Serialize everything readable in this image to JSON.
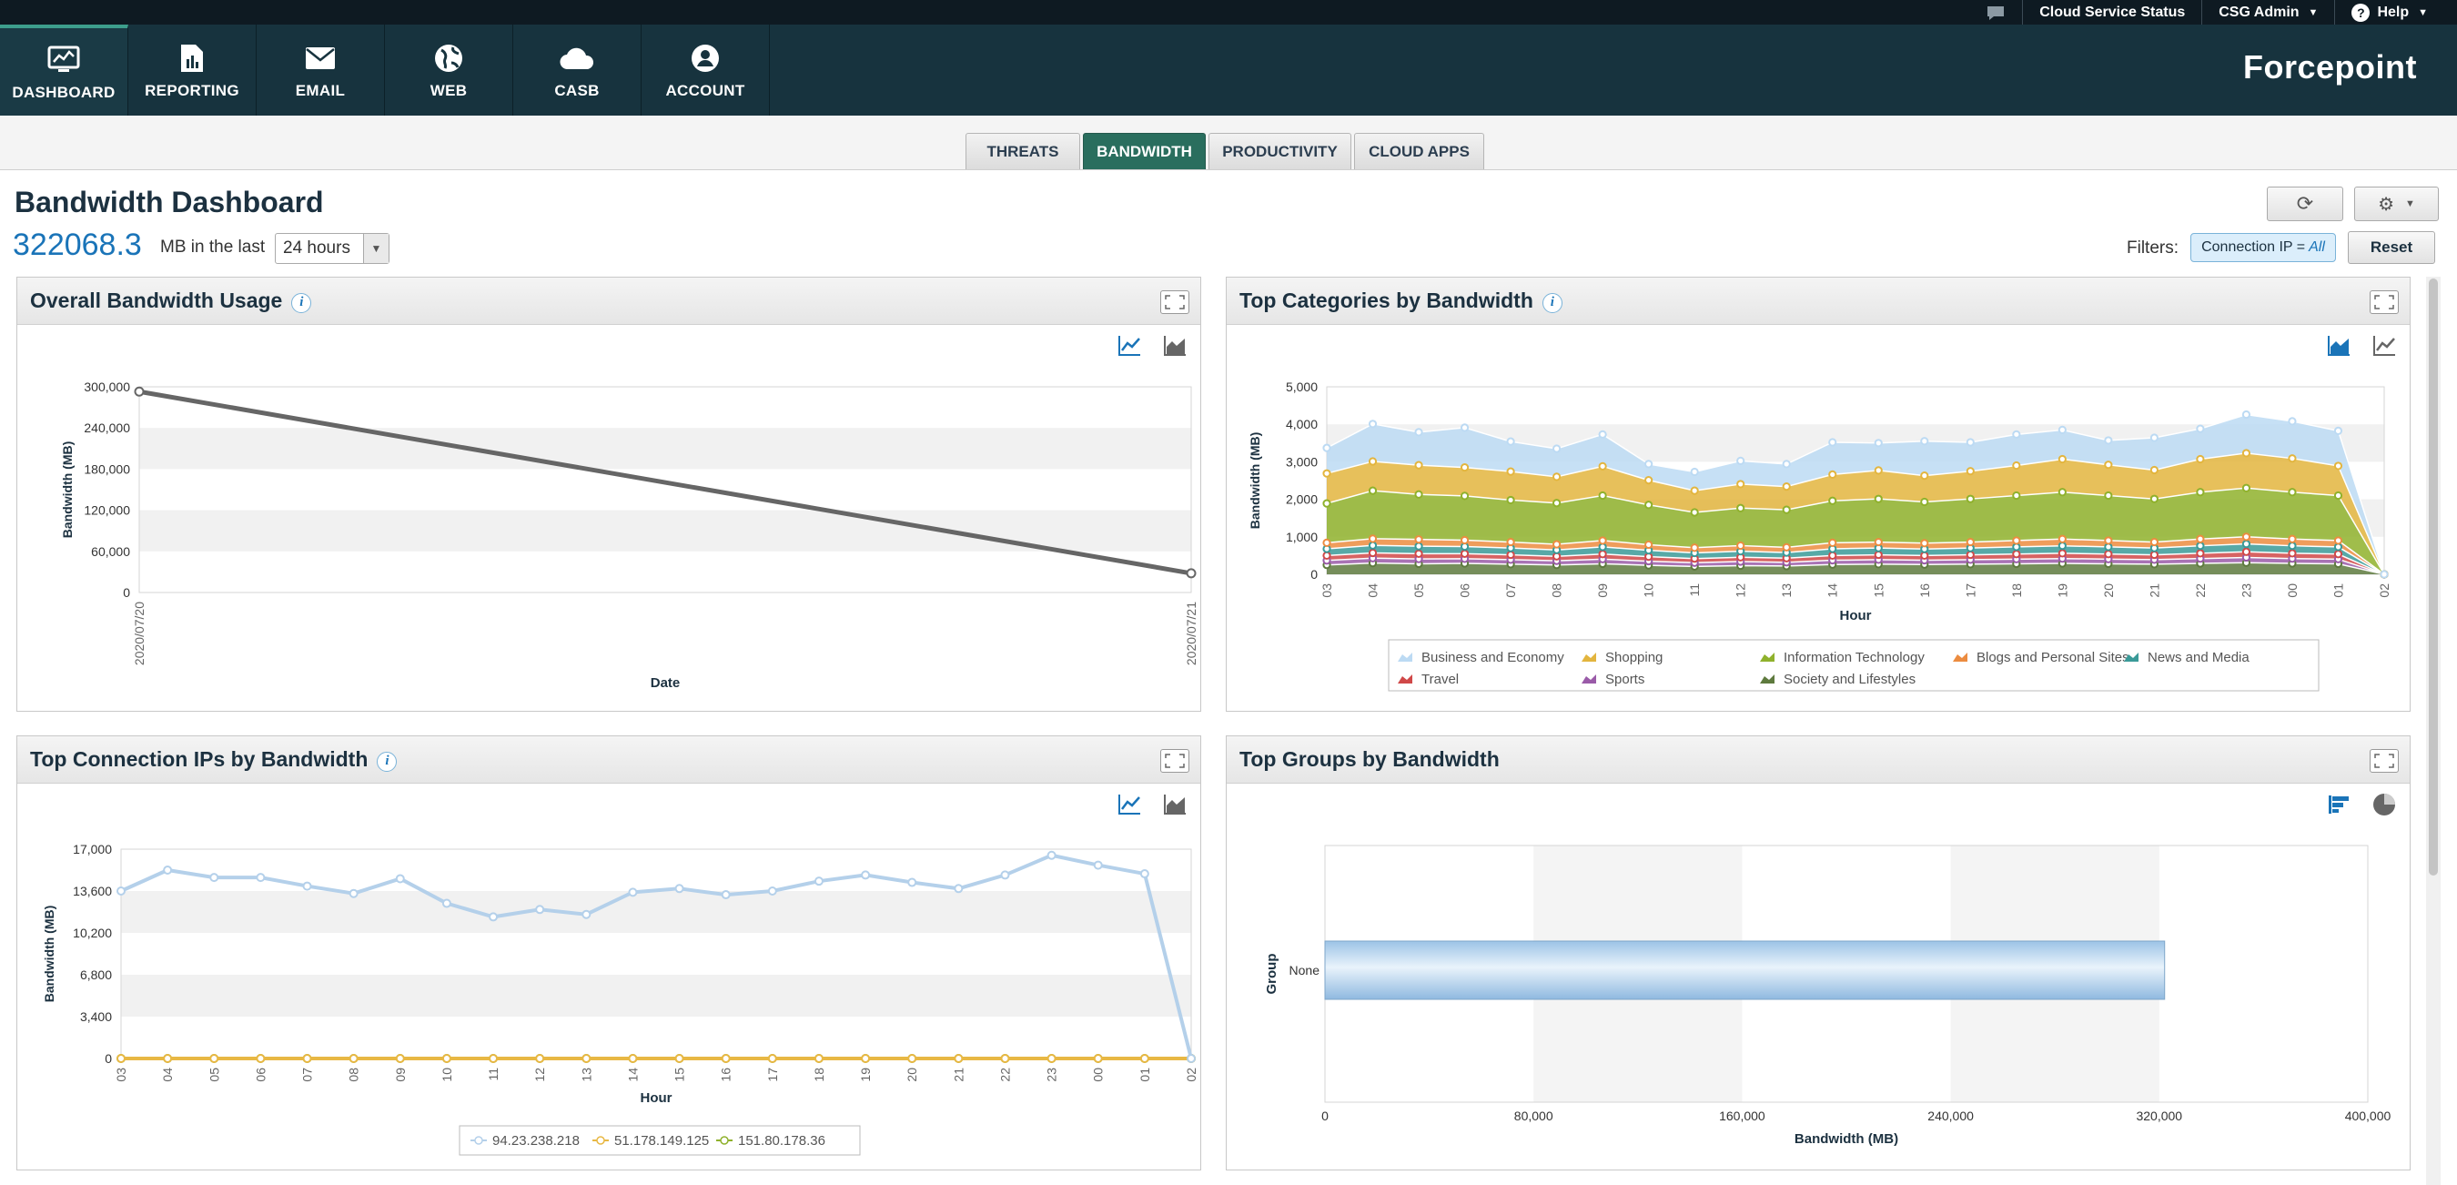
{
  "topbar": {
    "chat_icon": "chat-bubble-icon",
    "cloud_status": "Cloud Service Status",
    "user": "CSG Admin",
    "help": "Help"
  },
  "nav": {
    "items": [
      {
        "label": "DASHBOARD",
        "icon": "dashboard-monitor-icon"
      },
      {
        "label": "REPORTING",
        "icon": "report-document-icon"
      },
      {
        "label": "EMAIL",
        "icon": "envelope-icon"
      },
      {
        "label": "WEB",
        "icon": "globe-icon"
      },
      {
        "label": "CASB",
        "icon": "cloud-icon"
      },
      {
        "label": "ACCOUNT",
        "icon": "user-circle-icon"
      }
    ],
    "brand": "Forcepoint"
  },
  "subtabs": [
    "THREATS",
    "BANDWIDTH",
    "PRODUCTIVITY",
    "CLOUD APPS"
  ],
  "page": {
    "title": "Bandwidth Dashboard",
    "total": "322068.3",
    "in_last": "MB in the last",
    "time_range": "24 hours",
    "filters_label": "Filters:",
    "filter_key": "Connection IP =",
    "filter_value": "All",
    "reset": "Reset"
  },
  "colors": {
    "accent": "#2a6e5e",
    "title": "#1c3140",
    "link": "#1a74b8"
  },
  "panels": {
    "overall": {
      "title": "Overall Bandwidth Usage"
    },
    "categories": {
      "title": "Top Categories by Bandwidth"
    },
    "ips": {
      "title": "Top Connection IPs by Bandwidth"
    },
    "groups": {
      "title": "Top Groups by Bandwidth"
    }
  },
  "chart_data": [
    {
      "id": "overall",
      "type": "line",
      "x": [
        "2020/07/20",
        "2020/07/21"
      ],
      "series": [
        {
          "values": [
            293000,
            28000
          ],
          "color": "#666666"
        }
      ],
      "xlabel": "Date",
      "ylabel": "Bandwidth (MB)",
      "ylim": [
        0,
        300000
      ],
      "yticks": [
        "0",
        "60,000",
        "120,000",
        "180,000",
        "240,000",
        "300,000"
      ]
    },
    {
      "id": "categories",
      "type": "area",
      "stacked": true,
      "categories": [
        "03",
        "04",
        "05",
        "06",
        "07",
        "08",
        "09",
        "10",
        "11",
        "12",
        "13",
        "14",
        "15",
        "16",
        "17",
        "18",
        "19",
        "20",
        "21",
        "22",
        "23",
        "00",
        "01",
        "02"
      ],
      "series": [
        {
          "name": "Society and Lifestyles",
          "color": "#5e7a3e",
          "values": [
            250,
            300,
            280,
            290,
            270,
            250,
            280,
            240,
            210,
            230,
            220,
            260,
            270,
            260,
            270,
            280,
            290,
            280,
            270,
            290,
            310,
            290,
            280,
            0
          ]
        },
        {
          "name": "Sports",
          "color": "#9a5ba8",
          "values": [
            120,
            130,
            130,
            125,
            120,
            110,
            125,
            110,
            100,
            110,
            100,
            115,
            120,
            115,
            120,
            125,
            130,
            125,
            120,
            130,
            140,
            130,
            125,
            0
          ]
        },
        {
          "name": "Travel",
          "color": "#d04848",
          "values": [
            130,
            140,
            140,
            135,
            130,
            120,
            135,
            120,
            110,
            115,
            110,
            125,
            130,
            125,
            130,
            135,
            140,
            135,
            130,
            140,
            150,
            140,
            135,
            0
          ]
        },
        {
          "name": "News and Media",
          "color": "#3a9a98",
          "values": [
            180,
            200,
            200,
            190,
            180,
            170,
            190,
            170,
            150,
            160,
            150,
            180,
            180,
            175,
            180,
            190,
            200,
            190,
            180,
            200,
            210,
            200,
            190,
            0
          ]
        },
        {
          "name": "Blogs and Personal Sites",
          "color": "#ec8c40",
          "values": [
            160,
            180,
            180,
            170,
            160,
            150,
            170,
            150,
            140,
            150,
            140,
            160,
            160,
            155,
            160,
            170,
            180,
            170,
            160,
            180,
            190,
            180,
            170,
            0
          ]
        },
        {
          "name": "Information Technology",
          "color": "#8fb12c",
          "values": [
            1050,
            1280,
            1200,
            1180,
            1120,
            1100,
            1200,
            1060,
            940,
            1000,
            1000,
            1120,
            1150,
            1100,
            1150,
            1200,
            1250,
            1200,
            1150,
            1250,
            1300,
            1250,
            1200,
            0
          ]
        },
        {
          "name": "Shopping",
          "color": "#e3b53e",
          "values": [
            800,
            780,
            780,
            760,
            760,
            700,
            780,
            660,
            580,
            640,
            620,
            700,
            760,
            700,
            740,
            800,
            880,
            820,
            770,
            880,
            930,
            900,
            790,
            0
          ]
        },
        {
          "name": "Business and Economy",
          "color": "#bcdaf3",
          "values": [
            680,
            1000,
            880,
            1060,
            800,
            750,
            850,
            430,
            500,
            620,
            600,
            860,
            730,
            920,
            770,
            830,
            780,
            650,
            860,
            810,
            1030,
            990,
            935,
            0
          ]
        }
      ],
      "xlabel": "Hour",
      "ylabel": "Bandwidth (MB)",
      "ylim": [
        0,
        5000
      ],
      "yticks": [
        "0",
        "1,000",
        "2,000",
        "3,000",
        "4,000",
        "5,000"
      ],
      "legend_order": [
        "Business and Economy",
        "Shopping",
        "Information Technology",
        "Blogs and Personal Sites",
        "News and Media",
        "Travel",
        "Sports",
        "Society and Lifestyles"
      ],
      "legend": "bottom"
    },
    {
      "id": "ips",
      "type": "line",
      "categories": [
        "03",
        "04",
        "05",
        "06",
        "07",
        "08",
        "09",
        "10",
        "11",
        "12",
        "13",
        "14",
        "15",
        "16",
        "17",
        "18",
        "19",
        "20",
        "21",
        "22",
        "23",
        "00",
        "01",
        "02"
      ],
      "series": [
        {
          "name": "94.23.238.218",
          "color": "#b4d0ea",
          "values": [
            13600,
            15300,
            14700,
            14700,
            14000,
            13400,
            14600,
            12600,
            11500,
            12100,
            11700,
            13500,
            13800,
            13300,
            13600,
            14400,
            14900,
            14300,
            13800,
            14900,
            16500,
            15700,
            15000,
            0
          ]
        },
        {
          "name": "51.178.149.125",
          "color": "#e8b844",
          "values": [
            0,
            0,
            0,
            0,
            0,
            0,
            0,
            0,
            0,
            0,
            0,
            0,
            0,
            0,
            0,
            0,
            0,
            0,
            0,
            0,
            0,
            0,
            0,
            0
          ]
        },
        {
          "name": "151.80.178.36",
          "color": "#8fb12c",
          "values": [
            0,
            0,
            0,
            0,
            0,
            0,
            0,
            0,
            0,
            0,
            0,
            0,
            0,
            0,
            0,
            0,
            0,
            0,
            0,
            0,
            0,
            0,
            0,
            0
          ]
        }
      ],
      "xlabel": "Hour",
      "ylabel": "Bandwidth (MB)",
      "ylim": [
        0,
        17000
      ],
      "yticks": [
        "0",
        "3,400",
        "6,800",
        "10,200",
        "13,600",
        "17,000"
      ],
      "legend": "bottom"
    },
    {
      "id": "groups",
      "type": "bar",
      "orientation": "horizontal",
      "categories": [
        "None"
      ],
      "values": [
        322068.3
      ],
      "xlabel": "Bandwidth (MB)",
      "ylabel": "Group",
      "xlim": [
        0,
        400000
      ],
      "xticks": [
        "0",
        "80,000",
        "160,000",
        "240,000",
        "320,000",
        "400,000"
      ]
    }
  ]
}
